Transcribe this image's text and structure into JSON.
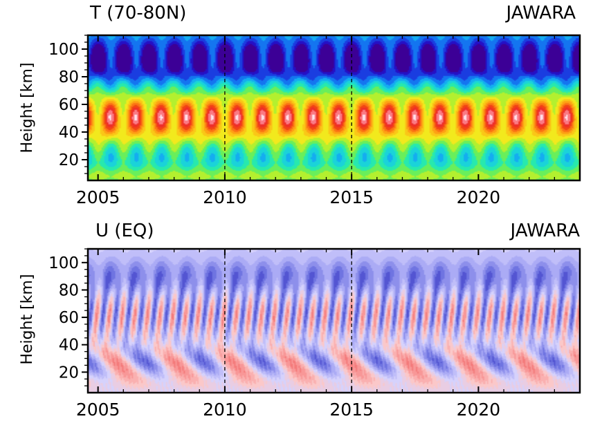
{
  "chart_data": [
    {
      "type": "heatmap",
      "title": "T (70-80N)",
      "model_label": "JAWARA",
      "ylabel": "Height  [km]",
      "xlabel": "",
      "xlim": [
        2004.6,
        2024.0
      ],
      "ylim": [
        5,
        110
      ],
      "x_ticks": [
        2005,
        2010,
        2015,
        2020
      ],
      "x_tick_labels": [
        "2005",
        "2010",
        "2015",
        "2020"
      ],
      "y_ticks": [
        20,
        40,
        60,
        80,
        100
      ],
      "y_tick_labels": [
        "20",
        "40",
        "60",
        "80",
        "100"
      ],
      "reference_lines": [
        2010,
        2015
      ],
      "colormap": "rainbow",
      "pattern": {
        "annual_cycle": true,
        "warm_core_height_km": 50,
        "cold_band_height_km": 90,
        "warm_extrema_x": [
          2005.5,
          2006.5,
          2007.5,
          2008.5,
          2009.5,
          2010.5,
          2011.5,
          2012.5,
          2013.5,
          2014.5,
          2015.5,
          2016.5,
          2017.5,
          2018.5,
          2019.5,
          2020.5,
          2021.5,
          2022.5,
          2023.5
        ],
        "cold_extrema_x": [
          2005.3,
          2006.3,
          2007.3,
          2008.3,
          2009.3,
          2010.3,
          2011.3,
          2012.3,
          2013.3,
          2014.3,
          2015.3,
          2016.3,
          2017.3,
          2018.3,
          2019.3,
          2020.3,
          2021.3,
          2022.3,
          2023.3
        ]
      }
    },
    {
      "type": "heatmap",
      "title": "U (EQ)",
      "model_label": "JAWARA",
      "ylabel": "Height  [km]",
      "xlabel": "",
      "xlim": [
        2004.6,
        2024.0
      ],
      "ylim": [
        5,
        110
      ],
      "x_ticks": [
        2005,
        2010,
        2015,
        2020
      ],
      "x_tick_labels": [
        "2005",
        "2010",
        "2015",
        "2020"
      ],
      "y_ticks": [
        20,
        40,
        60,
        80,
        100
      ],
      "y_tick_labels": [
        "20",
        "40",
        "60",
        "80",
        "100"
      ],
      "reference_lines": [
        2010,
        2015
      ],
      "colormap": "blue-white-red",
      "pattern": {
        "semiannual_oscillation_height_km": 60,
        "qbo_height_range_km": [
          15,
          35
        ],
        "qbo_period_years": 2.3
      }
    }
  ]
}
